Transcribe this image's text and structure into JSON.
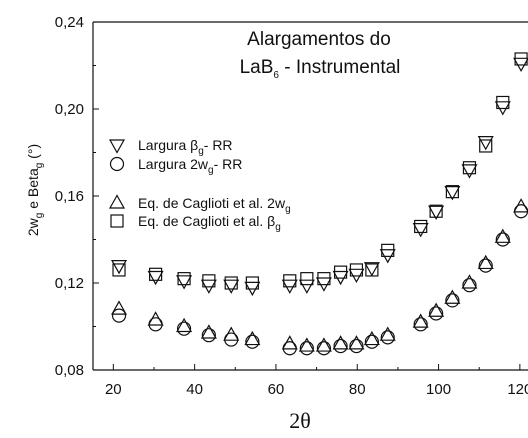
{
  "chart_data": {
    "type": "scatter",
    "title_line1": "Alargamentos do",
    "title_line2_prefix": "LaB",
    "title_line2_sub": "6",
    "title_line2_suffix": " -  Instrumental",
    "xlabel": "2θ",
    "ylabel": {
      "p1": "2w",
      "s1": "g",
      "p2": "  e  Beta",
      "s2": "g",
      "p3": " (°)"
    },
    "xlim": [
      15,
      122
    ],
    "ylim": [
      0.08,
      0.24
    ],
    "xticks": [
      20,
      40,
      60,
      80,
      100,
      120
    ],
    "xtick_labels": [
      "20",
      "40",
      "60",
      "80",
      "100",
      "120"
    ],
    "yticks": [
      0.08,
      0.12,
      0.16,
      0.2,
      0.24
    ],
    "ytick_labels": [
      "0,08",
      "0,12",
      "0,16",
      "0,20",
      "0,24"
    ],
    "legend": {
      "placement": "upper-left",
      "entries": [
        {
          "marker": "triangle-down",
          "label_main": "Largura  β",
          "label_sub": "g",
          "label_tail": "- RR"
        },
        {
          "marker": "circle",
          "label_main": "Largura 2w",
          "label_sub": "g",
          "label_tail": "- RR"
        },
        {
          "marker": "triangle-up",
          "label_main": "Eq. de Caglioti et al.  2w",
          "label_sub": "g",
          "label_tail": ""
        },
        {
          "marker": "square",
          "label_main": "Eq. de Caglioti et al.  β",
          "label_sub": "g",
          "label_tail": ""
        }
      ]
    },
    "series": [
      {
        "marker": "triangle-down",
        "x": [
          21.4,
          30.4,
          37.4,
          43.5,
          49.0,
          54.2,
          63.4,
          67.6,
          71.8,
          75.9,
          79.8,
          83.6,
          87.5,
          95.6,
          99.4,
          103.4,
          107.6,
          111.6,
          115.8,
          120.3
        ],
        "y": [
          0.128,
          0.123,
          0.121,
          0.119,
          0.119,
          0.118,
          0.119,
          0.119,
          0.12,
          0.123,
          0.124,
          0.127,
          0.133,
          0.145,
          0.153,
          0.162,
          0.172,
          0.185,
          0.201,
          0.221
        ]
      },
      {
        "marker": "circle",
        "x": [
          21.4,
          30.4,
          37.4,
          43.5,
          49.0,
          54.2,
          63.4,
          67.6,
          71.8,
          75.9,
          79.8,
          83.6,
          87.5,
          95.6,
          99.4,
          103.4,
          107.6,
          111.6,
          115.8,
          120.3
        ],
        "y": [
          0.105,
          0.101,
          0.099,
          0.096,
          0.094,
          0.093,
          0.09,
          0.09,
          0.09,
          0.091,
          0.091,
          0.093,
          0.095,
          0.101,
          0.106,
          0.112,
          0.119,
          0.128,
          0.14,
          0.153
        ]
      },
      {
        "marker": "triangle-up",
        "x": [
          21.4,
          30.4,
          37.4,
          43.5,
          49.0,
          54.2,
          63.4,
          67.6,
          71.8,
          75.9,
          79.8,
          83.6,
          87.5,
          95.6,
          99.4,
          103.4,
          107.6,
          111.6,
          115.8,
          120.3
        ],
        "y": [
          0.108,
          0.103,
          0.1,
          0.097,
          0.096,
          0.094,
          0.092,
          0.091,
          0.091,
          0.092,
          0.092,
          0.094,
          0.096,
          0.102,
          0.107,
          0.113,
          0.12,
          0.129,
          0.141,
          0.155
        ]
      },
      {
        "marker": "square",
        "x": [
          21.4,
          30.4,
          37.4,
          43.5,
          49.0,
          54.2,
          63.4,
          67.6,
          71.8,
          75.9,
          79.8,
          83.6,
          87.5,
          95.6,
          99.4,
          103.4,
          107.6,
          111.6,
          115.8,
          120.3
        ],
        "y": [
          0.126,
          0.124,
          0.122,
          0.121,
          0.12,
          0.12,
          0.121,
          0.122,
          0.122,
          0.125,
          0.126,
          0.126,
          0.135,
          0.146,
          0.153,
          0.162,
          0.173,
          0.183,
          0.203,
          0.223
        ]
      }
    ],
    "grid": false
  }
}
